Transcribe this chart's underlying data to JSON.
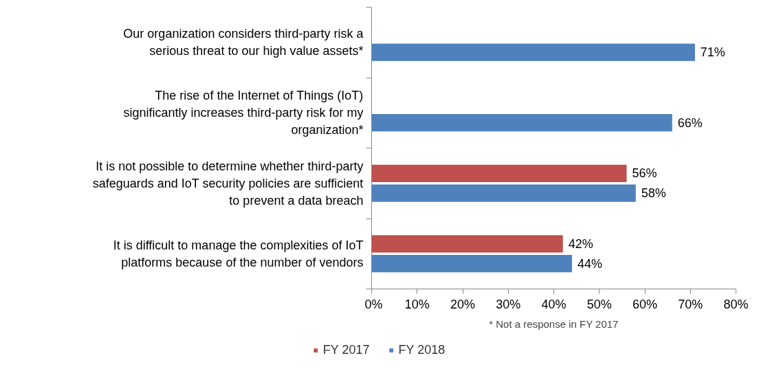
{
  "chart_data": {
    "type": "bar",
    "orientation": "horizontal",
    "categories": [
      "Our organization considers third-party risk a serious threat to our high value assets*",
      "The rise of the Internet of Things (IoT) significantly increases third-party risk for my organization*",
      "It is not possible to determine whether third-party safeguards and IoT security policies are sufficient to prevent a data breach",
      "It is difficult to manage the complexities of IoT platforms because of the number of vendors"
    ],
    "series": [
      {
        "name": "FY 2017",
        "color": "#c0504d",
        "values": [
          null,
          null,
          56,
          42
        ],
        "value_labels": [
          null,
          null,
          "56%",
          "42%"
        ]
      },
      {
        "name": "FY 2018",
        "color": "#4f81bd",
        "values": [
          71,
          66,
          58,
          44
        ],
        "value_labels": [
          "71%",
          "66%",
          "58%",
          "44%"
        ]
      }
    ],
    "xlim": [
      0,
      80
    ],
    "xticks": [
      {
        "value": 0,
        "label": "0%"
      },
      {
        "value": 10,
        "label": "10%"
      },
      {
        "value": 20,
        "label": "20%"
      },
      {
        "value": 30,
        "label": "30%"
      },
      {
        "value": 40,
        "label": "40%"
      },
      {
        "value": 50,
        "label": "50%"
      },
      {
        "value": 60,
        "label": "60%"
      },
      {
        "value": 70,
        "label": "70%"
      },
      {
        "value": 80,
        "label": "80%"
      }
    ],
    "annotations": [
      "* Not a response in FY 2017"
    ],
    "grid": false,
    "legend": "bottom"
  }
}
